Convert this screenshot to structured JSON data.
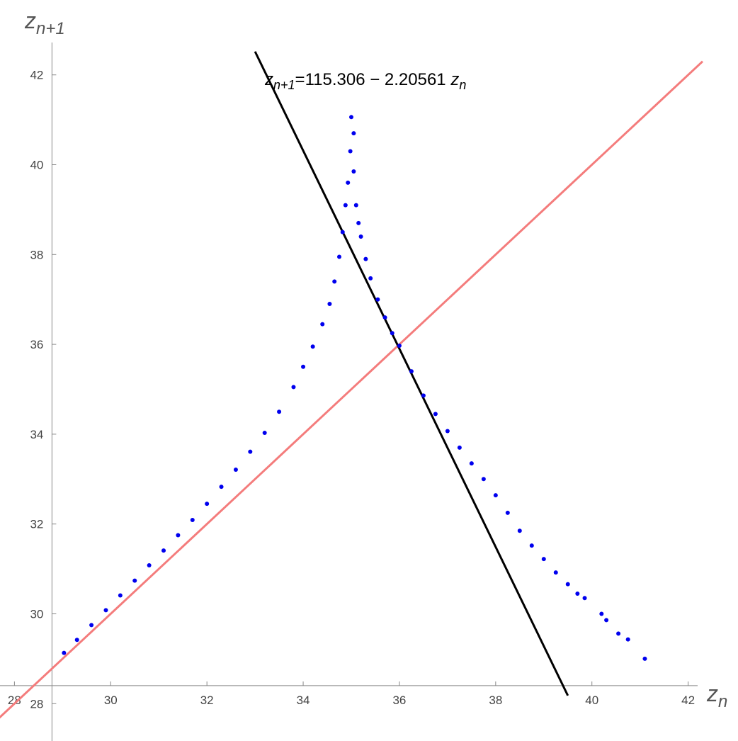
{
  "chart_data": {
    "type": "scatter",
    "xlabel": "z",
    "xlabel_sub": "n",
    "ylabel": "z",
    "ylabel_sub": "n+1",
    "annotation": [
      {
        "text": "z",
        "sub": false
      },
      {
        "text": "n+1",
        "sub": true
      },
      {
        "text": "=115.306 − 2.20561 ",
        "sub": false
      },
      {
        "text": "z",
        "sub": false
      },
      {
        "text": "n",
        "sub": true
      }
    ],
    "xlim": [
      27.7,
      42.3
    ],
    "ylim": [
      27.2,
      42.8
    ],
    "xticks": [
      28,
      30,
      32,
      34,
      36,
      38,
      40,
      42
    ],
    "yticks": [
      28,
      30,
      32,
      34,
      36,
      38,
      40,
      42
    ],
    "axes_origin": [
      28.78,
      28.4
    ],
    "reference_lines": [
      {
        "color": "#f47c7c",
        "x": [
          27.35,
          42.3
        ],
        "y": [
          27.35,
          42.3
        ]
      },
      {
        "color": "#000000",
        "x": [
          33.0,
          39.5
        ],
        "y": [
          42.52,
          28.18
        ]
      }
    ],
    "series": [
      {
        "color": "#0000ee",
        "x": [
          29.03,
          29.3,
          29.6,
          29.9,
          30.2,
          30.5,
          30.8,
          31.1,
          31.4,
          31.7,
          32.0,
          32.3,
          32.6,
          32.9,
          33.2,
          33.5,
          33.8,
          34.0,
          34.2,
          34.4,
          34.55,
          34.65,
          34.75,
          34.82,
          34.88,
          34.93,
          34.98,
          35.0,
          35.05,
          35.05,
          35.1,
          35.15,
          35.2,
          35.3,
          35.4,
          35.55,
          35.7,
          35.85,
          36.0,
          36.25,
          36.5,
          36.75,
          37.0,
          37.25,
          37.5,
          37.75,
          38.0,
          38.25,
          38.5,
          38.75,
          39.0,
          39.25,
          39.5,
          39.7,
          39.85,
          40.2,
          40.3,
          40.55,
          40.75,
          41.1
        ],
        "y": [
          29.13,
          29.42,
          29.75,
          30.08,
          30.41,
          30.74,
          31.08,
          31.41,
          31.75,
          32.09,
          32.45,
          32.83,
          33.21,
          33.61,
          34.03,
          34.5,
          35.05,
          35.5,
          35.95,
          36.45,
          36.9,
          37.4,
          37.95,
          38.5,
          39.1,
          39.6,
          40.3,
          41.06,
          40.7,
          39.85,
          39.1,
          38.7,
          38.4,
          37.9,
          37.47,
          37.0,
          36.6,
          36.25,
          35.97,
          35.4,
          34.86,
          34.45,
          34.07,
          33.7,
          33.35,
          33.0,
          32.64,
          32.25,
          31.85,
          31.52,
          31.22,
          30.92,
          30.66,
          30.45,
          30.35,
          30.0,
          29.86,
          29.56,
          29.43,
          29.0
        ]
      }
    ]
  }
}
